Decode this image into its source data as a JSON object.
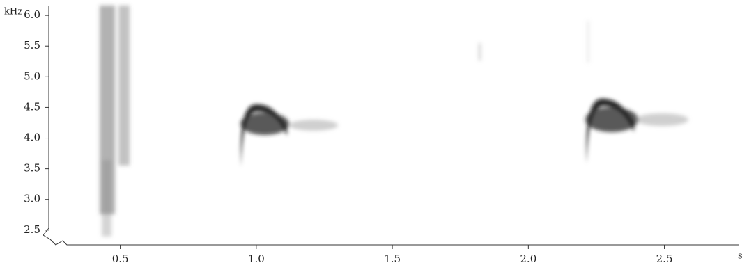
{
  "chart_data": {
    "type": "spectrogram",
    "x_label": "s",
    "y_label": "kHz",
    "xlim": [
      0.25,
      2.77
    ],
    "ylim": [
      2.26,
      6.16
    ],
    "xticks": [
      0.5,
      {
        "value": 1,
        "label": "1.0"
      },
      1.5,
      {
        "value": 2,
        "label": "2.0"
      },
      2.5
    ],
    "yticks": [
      2.5,
      {
        "value": 3,
        "label": "3.0"
      },
      3.5,
      {
        "value": 4,
        "label": "4.0"
      },
      4.5,
      {
        "value": 5,
        "label": "5.0"
      },
      5.5,
      {
        "value": 6,
        "label": "6.0"
      }
    ]
  }
}
